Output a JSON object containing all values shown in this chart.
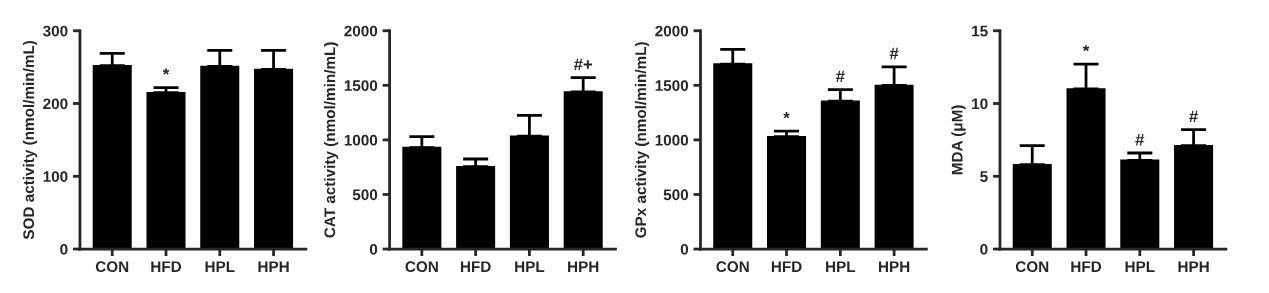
{
  "chart_data": [
    {
      "type": "bar",
      "ylabel": "SOD activity (nmol/min/mL)",
      "categories": [
        "CON",
        "HFD",
        "HPL",
        "HPH"
      ],
      "values": [
        252,
        215,
        251,
        247
      ],
      "errors": [
        [
          252,
          269
        ],
        [
          215,
          222
        ],
        [
          251,
          273
        ],
        [
          247,
          273
        ]
      ],
      "color": "#000000",
      "ylim": [
        0,
        300
      ],
      "yticks": [
        0,
        100,
        200,
        300
      ],
      "annotations": [
        {
          "text": "*",
          "x": "HFD",
          "y": 222
        }
      ],
      "grid": false,
      "legend": false
    },
    {
      "type": "bar",
      "ylabel": "CAT activity (nmol/min/mL)",
      "categories": [
        "CON",
        "HFD",
        "HPL",
        "HPH"
      ],
      "values": [
        930,
        755,
        1035,
        1440
      ],
      "errors": [
        [
          930,
          1030
        ],
        [
          755,
          825
        ],
        [
          1035,
          1225
        ],
        [
          1440,
          1570
        ]
      ],
      "color": "#000000",
      "ylim": [
        0,
        2000
      ],
      "yticks": [
        0,
        500,
        1000,
        1500,
        2000
      ],
      "annotations": [
        {
          "text": "#+",
          "x": "HPH",
          "y": 1570
        }
      ],
      "grid": false,
      "legend": false
    },
    {
      "type": "bar",
      "ylabel": "GPx activity (nmol/min/mL)",
      "categories": [
        "CON",
        "HFD",
        "HPL",
        "HPH"
      ],
      "values": [
        1695,
        1030,
        1355,
        1500
      ],
      "errors": [
        [
          1695,
          1830
        ],
        [
          1030,
          1080
        ],
        [
          1355,
          1460
        ],
        [
          1500,
          1670
        ]
      ],
      "color": "#000000",
      "ylim": [
        0,
        2000
      ],
      "yticks": [
        0,
        500,
        1000,
        1500,
        2000
      ],
      "annotations": [
        {
          "text": "*",
          "x": "HFD",
          "y": 1080
        },
        {
          "text": "#",
          "x": "HPL",
          "y": 1460
        },
        {
          "text": "#",
          "x": "HPH",
          "y": 1670
        }
      ],
      "grid": false,
      "legend": false
    },
    {
      "type": "bar",
      "ylabel": "MDA (μM)",
      "categories": [
        "CON",
        "HFD",
        "HPL",
        "HPH"
      ],
      "values": [
        5.8,
        11.0,
        6.1,
        7.1
      ],
      "errors": [
        [
          5.8,
          7.1
        ],
        [
          11.0,
          12.7
        ],
        [
          6.1,
          6.6
        ],
        [
          7.1,
          8.2
        ]
      ],
      "color": "#000000",
      "ylim": [
        0,
        15
      ],
      "yticks": [
        0,
        5,
        10,
        15
      ],
      "annotations": [
        {
          "text": "*",
          "x": "HFD",
          "y": 12.7
        },
        {
          "text": "#",
          "x": "HPL",
          "y": 6.6
        },
        {
          "text": "#",
          "x": "HPH",
          "y": 8.2
        }
      ],
      "grid": false,
      "legend": false
    }
  ]
}
